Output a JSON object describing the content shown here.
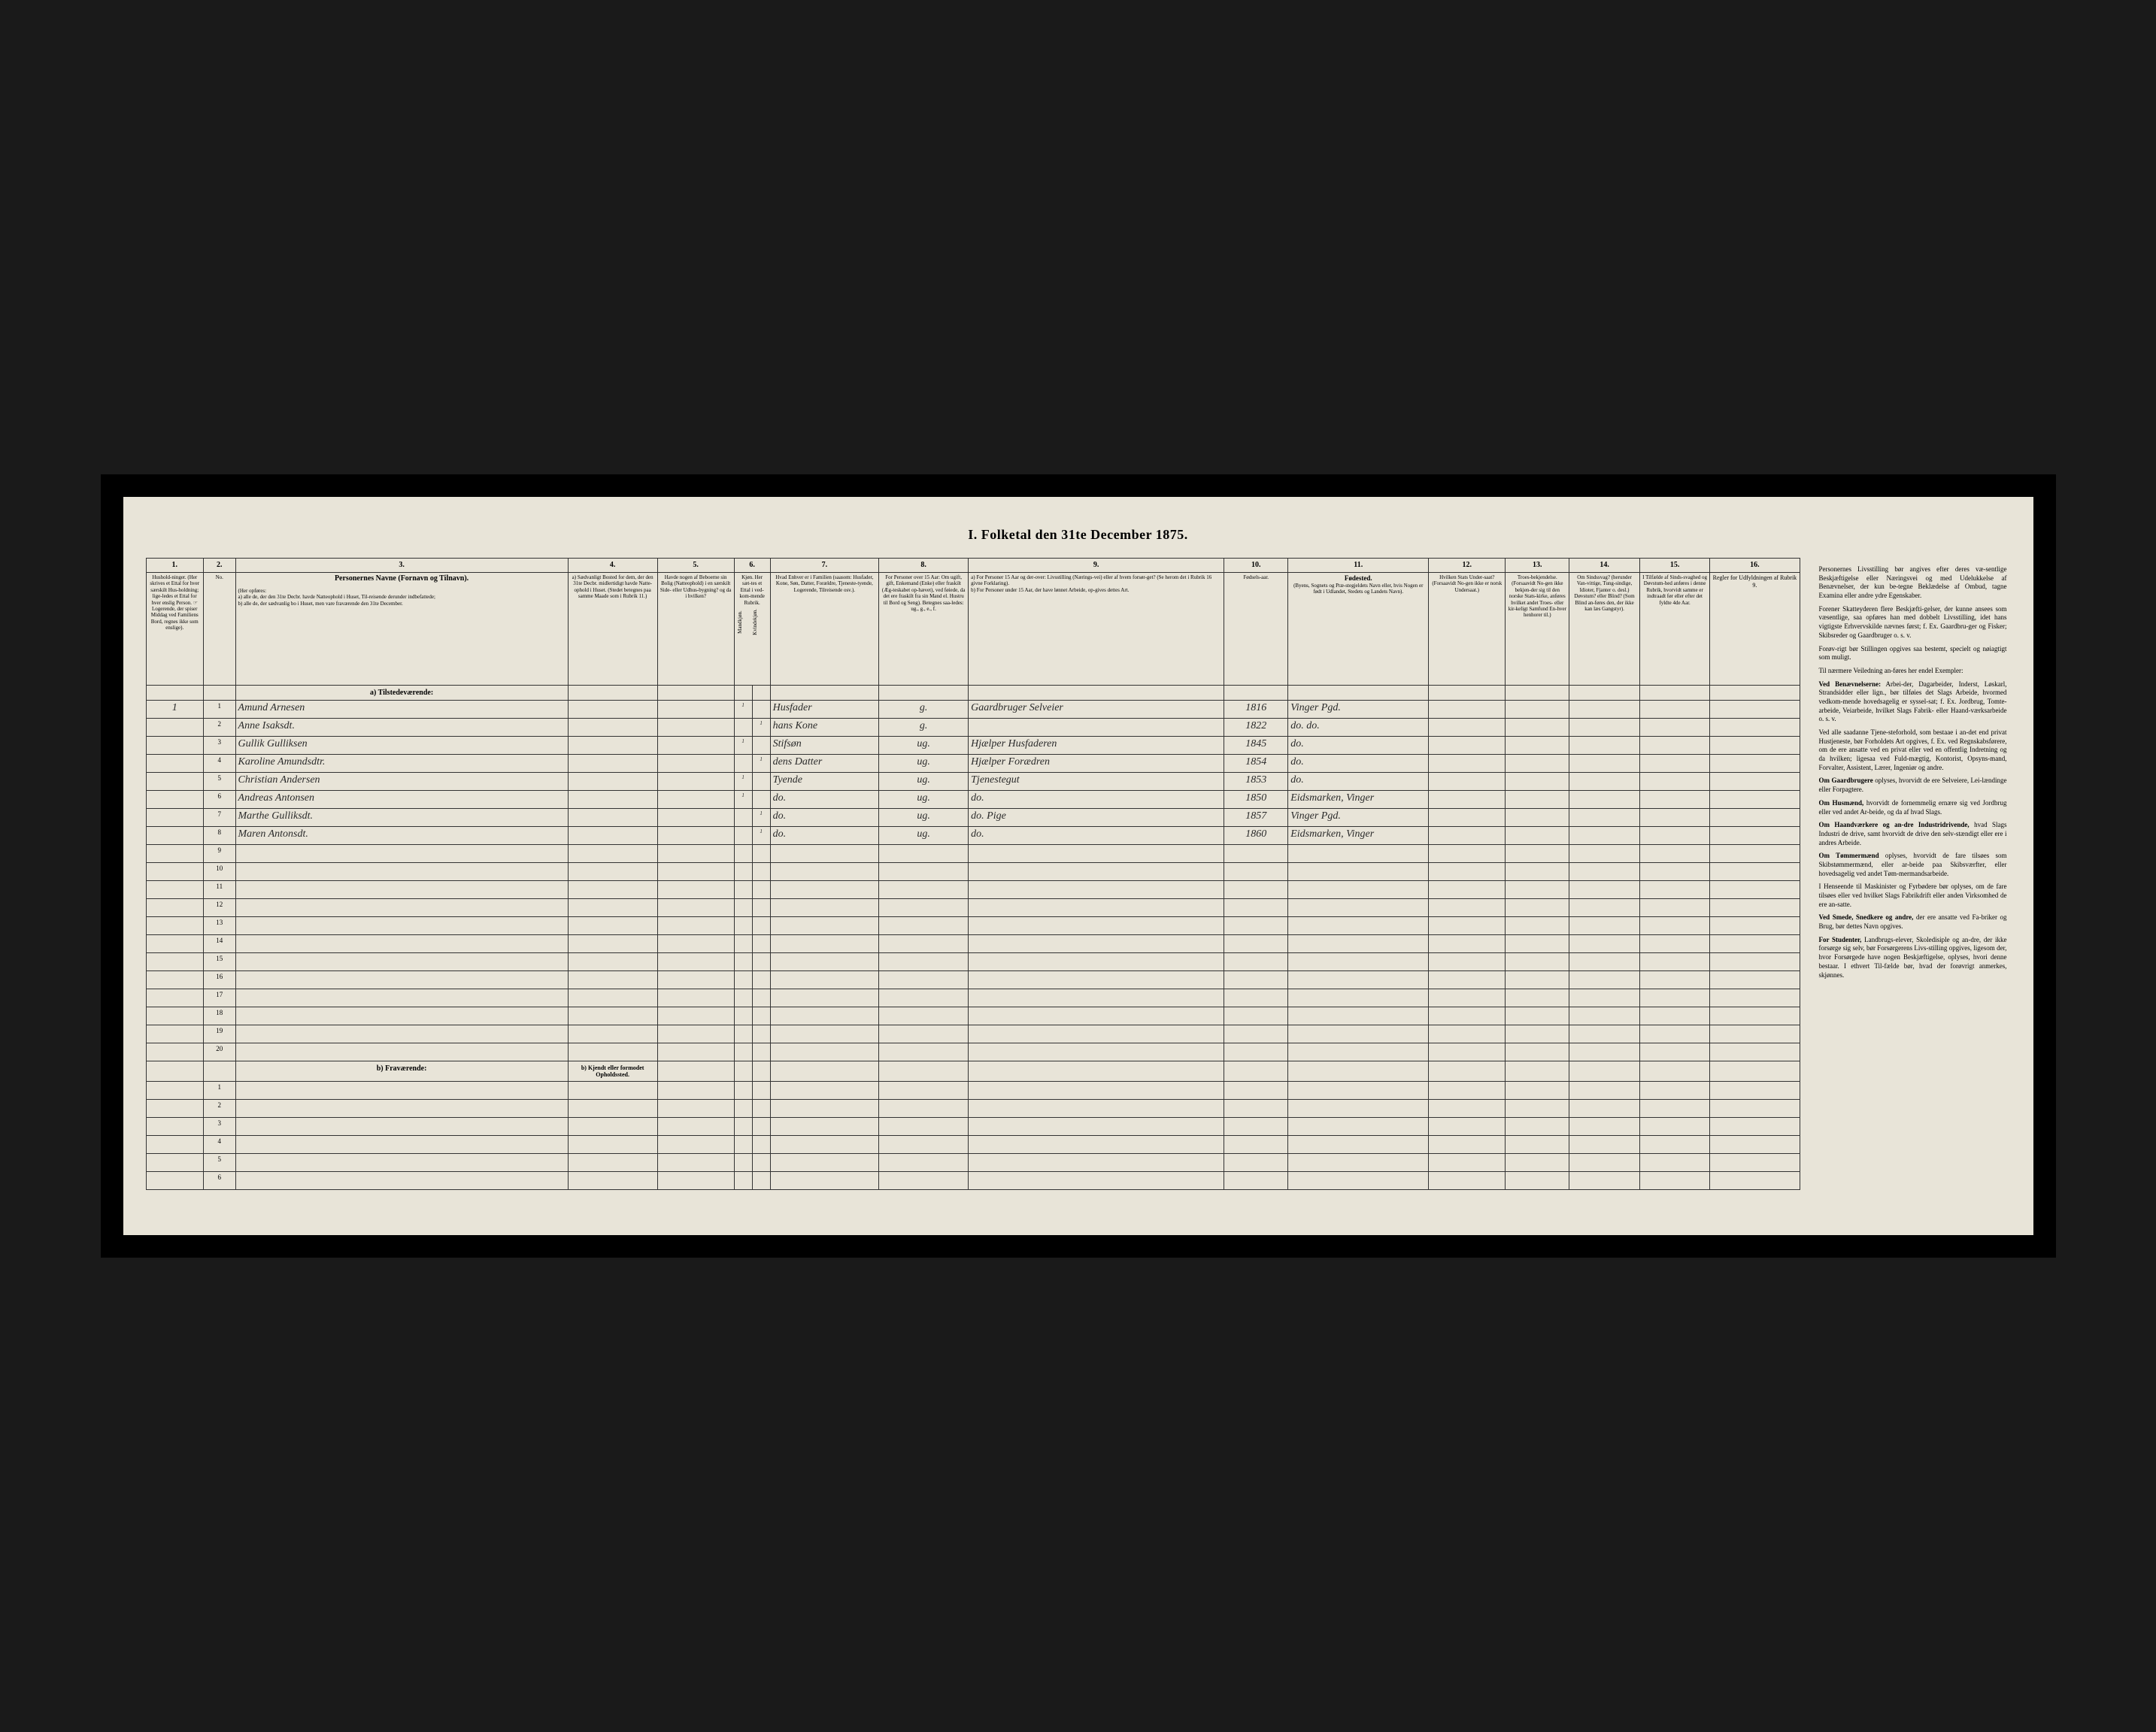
{
  "page_title": "I. Folketal den 31te December 1875.",
  "colors": {
    "paper": "#e8e4d8",
    "ink": "#2a2a2a",
    "frame": "#000000",
    "border": "#333333"
  },
  "columns": {
    "numbers": [
      "1.",
      "2.",
      "3.",
      "4.",
      "5.",
      "6.",
      "7.",
      "8.",
      "9.",
      "10.",
      "11.",
      "12.",
      "13.",
      "14.",
      "15.",
      "16."
    ],
    "headers": {
      "1": "Hushold-ninger. (Her skrives et Ettal for hver særskilt Hus-holdning; lige-ledes et Ettal for hver enslig Person. ☞ Logerende, der spiser Middag ved Familiens Bord, regnes ikke som enslige).",
      "2": "No.",
      "3_title": "Personernes Navne (Fornavn og Tilnavn).",
      "3_sub": "(Her opføres:\na) alle de, der den 31te Decbr. havde Natteophold i Huset, Til-reisende derunder indbefattede;\nb) alle de, der sædvanlig bo i Huset, men vare fraværende den 31te December.",
      "4": "a) Sædvanligt Bosted for dem, der den 31te Decbr. midlertidigt havde Natte-ophold i Huset. (Stedet betegnes paa samme Maade som i Rubrik 11.)",
      "5": "Havde nogen af Beboerne sin Bolig (Natteophold) i en særskilt Side- eller Udhus-bygning? og da i hvilken?",
      "6": "Kjøn. Her sæt-tes et Ettal i ved-kom-mende Rubrik.",
      "6a": "Mandkjøn.",
      "6b": "Kvindekjøn.",
      "7": "Hvad Enhver er i Familien (saasom: Husfader, Kone, Søn, Datter, Forældre, Tjeneste-tyende, Logerende, Tilreisende osv.).",
      "8": "For Personer over 15 Aar: Om ugift, gift, Enkemand (Enke) eller fraskilt (Æg-teskabet op-hævet), ved føiede, da det ere fraskilt fra sin Mand el. Hustru til Bord og Seng). Betegnes saa-ledes: ug., g., e., f.",
      "9": "a) For Personer 15 Aar og der-over: Livsstilling (Nærings-vei) eller af hvem forsør-get? (Se herom det i Rubrik 16 givne Forklaring).\nb) For Personer under 15 Aar, der have lønnet Arbeide, op-gives dettes Art.",
      "10": "Fødsels-aar.",
      "11_title": "Fødested.",
      "11_sub": "(Byens, Sognets og Præ-stegjeldets Navn eller, hvis Nogen er født i Udlandet, Stedets og Landets Navn).",
      "12": "Hvilken Stats Under-saat? (Forsaavidt No-gen ikke er norsk Undersaat.)",
      "13": "Troes-bekjendelse. (Forsaavidt No-gen ikke bekjen-der sig til den norske Stats-kirke, anføres hvilket andet Troes- eller kir-keligt Samfund En-hver henhorer til.)",
      "14": "Om Sindssvag? (herunder Van-vittige, Tung-sindige, Idioter, Fjanter o. desl.) Døvstum? eller Blind? (Som Blind an-føres den, der ikke kan læs Gangstyr).",
      "15": "I Tilfælde af Sinds-svaghed og Døvstum-hed anføres i denne Rubrik, hvorvidt samme er indtraadt før eller efter det fyldte 4de Aar.",
      "16": "Regler for Udfyldningen af Rubrik 9."
    }
  },
  "sections": {
    "a": "a) Tilstedeværende:",
    "b": "b) Fraværende:",
    "b_col4": "b) Kjendt eller formodet Opholdssted."
  },
  "row_numbers": [
    "1",
    "2",
    "3",
    "4",
    "5",
    "6",
    "7",
    "8",
    "9",
    "10",
    "11",
    "12",
    "13",
    "14",
    "15",
    "16",
    "17",
    "18",
    "19",
    "20"
  ],
  "rows": [
    {
      "hh": "1",
      "no": "1",
      "name": "Amund Arnesen",
      "sex_m": "1",
      "sex_f": "",
      "rel": "Husfader",
      "civ": "g.",
      "occ": "Gaardbruger Selveier",
      "born": "1816",
      "place": "Vinger Pgd."
    },
    {
      "hh": "",
      "no": "2",
      "name": "Anne Isaksdt.",
      "sex_m": "",
      "sex_f": "1",
      "rel": "hans Kone",
      "civ": "g.",
      "occ": "",
      "born": "1822",
      "place": "do. do."
    },
    {
      "hh": "",
      "no": "3",
      "name": "Gullik Gulliksen",
      "sex_m": "1",
      "sex_f": "",
      "rel": "Stifsøn",
      "civ": "ug.",
      "occ": "Hjælper Husfaderen",
      "born": "1845",
      "place": "do."
    },
    {
      "hh": "",
      "no": "4",
      "name": "Karoline Amundsdtr.",
      "sex_m": "",
      "sex_f": "1",
      "rel": "dens Datter",
      "civ": "ug.",
      "occ": "Hjælper Forædren",
      "born": "1854",
      "place": "do."
    },
    {
      "hh": "",
      "no": "5",
      "name": "Christian Andersen",
      "sex_m": "1",
      "sex_f": "",
      "rel": "Tyende",
      "civ": "ug.",
      "occ": "Tjenestegut",
      "born": "1853",
      "place": "do."
    },
    {
      "hh": "",
      "no": "6",
      "name": "Andreas Antonsen",
      "sex_m": "1",
      "sex_f": "",
      "rel": "do.",
      "civ": "ug.",
      "occ": "do.",
      "born": "1850",
      "place": "Eidsmarken, Vinger"
    },
    {
      "hh": "",
      "no": "7",
      "name": "Marthe Gulliksdt.",
      "sex_m": "",
      "sex_f": "1",
      "rel": "do.",
      "civ": "ug.",
      "occ": "do. Pige",
      "born": "1857",
      "place": "Vinger Pgd."
    },
    {
      "hh": "",
      "no": "8",
      "name": "Maren Antonsdt.",
      "sex_m": "",
      "sex_f": "1",
      "rel": "do.",
      "civ": "ug.",
      "occ": "do.",
      "born": "1860",
      "place": "Eidsmarken, Vinger"
    }
  ],
  "sidebar": {
    "title": "Regler for Udfyldningen af Rubrik 9.",
    "p1": "Personernes Livsstilling bør angives efter deres væ-sentlige Beskjæftigelse eller Næringsvei og med Udelukkelse af Benævnelser, der kun be-tegne Beklædelse af Ombud, tagne Examina eller andre ydre Egenskaber.",
    "p2": "Forener Skatteyderen flere Beskjæfti-gelser, der kunne ansees som væsentlige, saa opføres han med dobbelt Livsstilling, idet hans vigtigste Erhvervskilde nævnes først; f. Ex. Gaardbru-ger og Fisker; Skibsreder og Gaardbruger o. s. v.",
    "p3": "Forøv-rigt bør Stillingen opgives saa bestemt, specielt og nøiagtigt som muligt.",
    "p4": "Til nærmere Veiledning an-føres her endel Exempler:",
    "p5_label": "Ved Benævnelserne:",
    "p5": "Arbei-der, Dagarbeider, Inderst, Løskarl, Strandsidder eller lign., bør tilføies det Slags Arbeide, hvormed vedkom-mende hovedsagelig er syssel-sat; f. Ex. Jordbrug, Tomte-arbeide, Veiarbeide, hvilket Slags Fabrik- eller Haand-værksarbeide o. s. v.",
    "p6": "Ved alle saadanne Tjene-steforhold, som bestaae i an-det end privat Hustjeneste, bør Forholdets Art opgives, f. Ex. ved Regnskabsførere, om de ere ansatte ved en privat eller ved en offentlig Indretning og da hvilken; ligesaa ved Fuld-mægtig, Kontorist, Opsyns-mand, Forvalter, Assistent, Lærer, Ingeniør og andre.",
    "p7_label": "Om Gaardbrugere",
    "p7": "oplyses, hvorvidt de ere Selveiere, Lei-lændinge eller Forpagtere.",
    "p8_label": "Om Husmænd,",
    "p8": "hvorvidt de fornemmelig ernære sig ved Jordbrug eller ved andet Ar-beide, og da af hvad Slags.",
    "p9_label": "Om Haandværkere og an-dre Industridrivende,",
    "p9": "hvad Slags Industri de drive, samt hvorvidt de drive den selv-stændigt eller ere i andres Arbeide.",
    "p10_label": "Om Tømmermænd",
    "p10": "oplyses, hvorvidt de fare tilsøes som Skibstømmermænd, eller ar-beide paa Skibsværfter, eller hovedsagelig ved andet Tøm-mermandsarbeide.",
    "p11": "I Henseende til Maskinister og Fyrbødere bør oplyses, om de fare tilsøes eller ved hvilket Slags Fabrikdrift eller anden Virksomhed de ere an-satte.",
    "p12_label": "Ved Smede, Snedkere og andre,",
    "p12": "der ere ansatte ved Fa-briker og Brug, bør dettes Navn opgives.",
    "p13_label": "For Studenter,",
    "p13": "Landbrugs-elever, Skoledisiple og an-dre, der ikke forsørge sig selv, bør Forsørgerens Livs-stilling opgives, ligesom der, hvor Forsørgede have nogen Beskjæftigelse, oplyses, hvori denne bestaar. I ethvert Til-fælde bør, hvad der forøvrigt anmerkes, skjønnes."
  }
}
